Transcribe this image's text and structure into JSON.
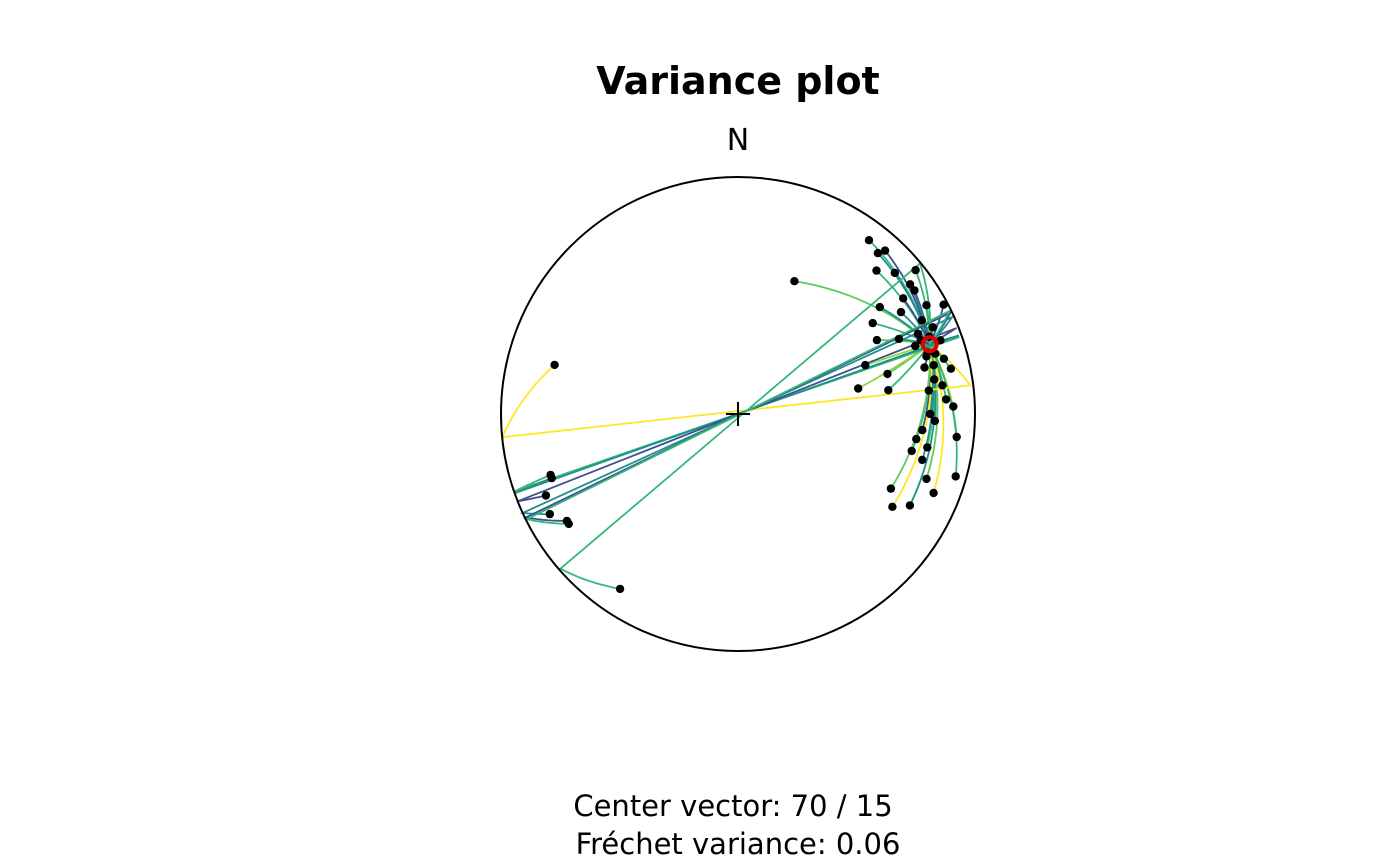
{
  "chart_data": {
    "type": "scatter",
    "projection": "stereonet (equal-area, lower hemisphere)",
    "title": "Variance plot",
    "north_label": "N",
    "center_vector": {
      "azimuth": 70,
      "plunge": 15,
      "marker_color": "#e00000"
    },
    "captions": {
      "center": "Center vector: 70 / 15",
      "variance": "Fréchet variance: 0.06"
    },
    "line_palette": [
      "#3b528b",
      "#21908d",
      "#35b779",
      "#5ec962",
      "#90d743",
      "#fde725"
    ],
    "points": [
      {
        "azimuth": 23,
        "plunge": 39,
        "c": 3
      },
      {
        "azimuth": 37,
        "plunge": 9,
        "c": 2
      },
      {
        "azimuth": 41,
        "plunge": 11,
        "c": 1
      },
      {
        "azimuth": 42,
        "plunge": 8,
        "c": 0
      },
      {
        "azimuth": 44,
        "plunge": 17,
        "c": 2
      },
      {
        "azimuth": 48,
        "plunge": 12,
        "c": 1
      },
      {
        "azimuth": 51,
        "plunge": 4,
        "c": 2
      },
      {
        "azimuth": 55,
        "plunge": 10,
        "c": 0
      },
      {
        "azimuth": 53,
        "plunge": 26,
        "c": 1
      },
      {
        "azimuth": 56,
        "plunge": 32,
        "c": 2
      },
      {
        "azimuth": 62,
        "plunge": 34,
        "c": 3
      },
      {
        "azimuth": 53,
        "plunge": 10,
        "c": 1
      },
      {
        "azimuth": 55,
        "plunge": 16,
        "c": 0
      },
      {
        "azimuth": 58,
        "plunge": 20,
        "c": 1
      },
      {
        "azimuth": 60,
        "plunge": 9,
        "c": 2
      },
      {
        "azimuth": 62,
        "plunge": 2,
        "c": 0
      },
      {
        "azimuth": 65,
        "plunge": 26,
        "c": 1
      },
      {
        "azimuth": 69,
        "plunge": 42,
        "c": 4
      },
      {
        "azimuth": 75,
        "plunge": 35,
        "c": 3
      },
      {
        "azimuth": 78,
        "plunge": 47,
        "c": 4
      },
      {
        "azimuth": 81,
        "plunge": 36,
        "c": 2
      },
      {
        "azimuth": 63,
        "plunge": 14,
        "c": 0
      },
      {
        "azimuth": 66,
        "plunge": 11,
        "c": 1
      },
      {
        "azimuth": 66,
        "plunge": 18,
        "c": 2
      },
      {
        "azimuth": 68,
        "plunge": 14,
        "c": 0
      },
      {
        "azimuth": 70,
        "plunge": 10,
        "c": 0
      },
      {
        "azimuth": 72,
        "plunge": 17,
        "c": 1
      },
      {
        "azimuth": 73,
        "plunge": 14,
        "c": 2
      },
      {
        "azimuth": 75,
        "plunge": 11,
        "c": 1
      },
      {
        "azimuth": 76,
        "plunge": 20,
        "c": 0
      },
      {
        "azimuth": 78,
        "plunge": 9,
        "c": 2
      },
      {
        "azimuth": 80,
        "plunge": 17,
        "c": 1
      },
      {
        "azimuth": 82,
        "plunge": 14,
        "c": 0
      },
      {
        "azimuth": 83,
        "plunge": 20,
        "c": 1
      },
      {
        "azimuth": 86,
        "plunge": 13,
        "c": 2
      },
      {
        "azimuth": 88,
        "plunge": 10,
        "c": 5
      },
      {
        "azimuth": 90,
        "plunge": 20,
        "c": 1
      },
      {
        "azimuth": 92,
        "plunge": 18,
        "c": 2
      },
      {
        "azimuth": 95,
        "plunge": 23,
        "c": 0
      },
      {
        "azimuth": 96,
        "plunge": 8,
        "c": 2
      },
      {
        "azimuth": 98,
        "plunge": 25,
        "c": 1
      },
      {
        "azimuth": 100,
        "plunge": 20,
        "c": 3
      },
      {
        "azimuth": 102,
        "plunge": 26,
        "c": 2
      },
      {
        "azimuth": 104,
        "plunge": 21,
        "c": 1
      },
      {
        "azimuth": 106,
        "plunge": 5,
        "c": 2
      },
      {
        "azimuth": 109,
        "plunge": 17,
        "c": 3
      },
      {
        "azimuth": 112,
        "plunge": 12,
        "c": 5
      },
      {
        "azimuth": 116,
        "plunge": 29,
        "c": 3
      },
      {
        "azimuth": 118,
        "plunge": 19,
        "c": 1
      },
      {
        "azimuth": 121,
        "plunge": 25,
        "c": 5
      },
      {
        "azimuth": 73,
        "plunge": 18,
        "c": 0
      },
      {
        "azimuth": 69,
        "plunge": 21,
        "c": 1
      },
      {
        "azimuth": 76,
        "plunge": 16,
        "c": 2
      },
      {
        "azimuth": 68,
        "plunge": 18,
        "c": 0
      },
      {
        "azimuth": 285,
        "plunge": 21,
        "c": 5
      },
      {
        "azimuth": 252,
        "plunge": 18,
        "c": 2
      },
      {
        "azimuth": 251,
        "plunge": 18,
        "c": 1
      },
      {
        "azimuth": 247,
        "plunge": 13,
        "c": 0
      },
      {
        "azimuth": 242,
        "plunge": 11,
        "c": 1
      },
      {
        "azimuth": 238,
        "plunge": 16,
        "c": 0
      },
      {
        "azimuth": 237,
        "plunge": 16,
        "c": 2
      },
      {
        "azimuth": 214,
        "plunge": 12,
        "c": 2
      }
    ]
  }
}
